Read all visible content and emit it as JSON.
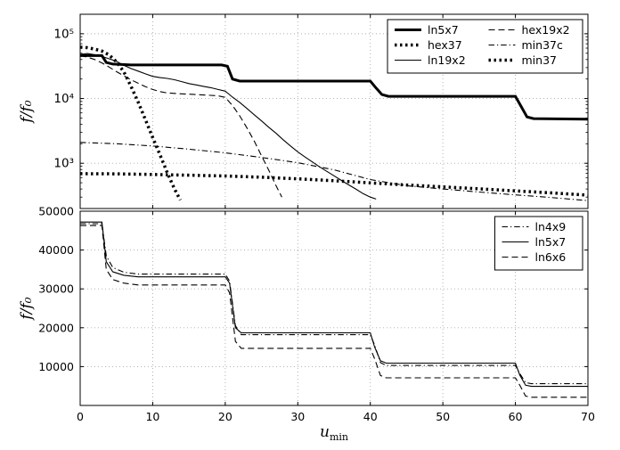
{
  "figure": {
    "background": "#ffffff",
    "axes_color": "#000000",
    "grid_color": "#aaaaaa"
  },
  "chart_data": [
    {
      "type": "line",
      "title": "",
      "ylabel": "f/f₀",
      "yscale": "log",
      "xlim": [
        0,
        70
      ],
      "ylim": [
        200,
        200000
      ],
      "grid": true,
      "xticks": [
        0,
        10,
        20,
        30,
        40,
        50,
        60,
        70
      ],
      "yticks": [
        {
          "v": 1000,
          "label": "10³"
        },
        {
          "v": 10000,
          "label": "10⁴"
        },
        {
          "v": 100000,
          "label": "10⁵"
        }
      ],
      "legend": {
        "position": "upper right",
        "ncol": 2,
        "entries": [
          "ln5x7",
          "hex37",
          "ln19x2",
          "hex19x2",
          "min37c",
          "min37"
        ]
      },
      "series": [
        {
          "name": "ln5x7",
          "style": "solid",
          "width": 3,
          "x": [
            0,
            3,
            3.6,
            4.5,
            7,
            19.5,
            20.3,
            21,
            22,
            40,
            40.8,
            41.6,
            42.5,
            60,
            60.8,
            61.6,
            62.5,
            70
          ],
          "y": [
            46000,
            46000,
            36000,
            34000,
            33000,
            33000,
            31500,
            20000,
            18600,
            18600,
            14500,
            11500,
            10800,
            10800,
            7500,
            5200,
            4900,
            4800
          ]
        },
        {
          "name": "hex37",
          "style": "dotted",
          "width": 3.5,
          "x": [
            0,
            1,
            2,
            3,
            4,
            5,
            6,
            7,
            8,
            9,
            10,
            11,
            12,
            13,
            13.8
          ],
          "y": [
            62000,
            61000,
            58000,
            54000,
            47000,
            37000,
            26000,
            15500,
            8800,
            4700,
            2500,
            1350,
            720,
            400,
            270
          ]
        },
        {
          "name": "ln19x2",
          "style": "solid",
          "width": 1.1,
          "x": [
            0,
            1,
            2,
            3,
            4,
            5,
            6,
            7,
            8,
            9,
            10,
            11,
            12,
            13,
            14,
            15,
            16,
            17,
            18,
            19,
            20,
            21,
            22,
            23,
            24,
            25,
            26,
            27,
            28,
            29,
            30,
            31,
            32,
            33,
            34,
            35,
            36,
            37,
            38,
            39,
            40,
            40.8
          ],
          "y": [
            48000,
            49500,
            47500,
            44500,
            41000,
            37500,
            32500,
            29000,
            26500,
            24000,
            22000,
            21000,
            20400,
            19500,
            18200,
            17000,
            16200,
            15400,
            14700,
            13800,
            13000,
            10500,
            8700,
            7000,
            5600,
            4500,
            3600,
            2900,
            2300,
            1850,
            1500,
            1250,
            1050,
            880,
            750,
            640,
            545,
            465,
            400,
            340,
            300,
            280
          ]
        },
        {
          "name": "hex19x2",
          "style": "dashed",
          "width": 1.1,
          "x": [
            0,
            1,
            2,
            3,
            4,
            5,
            6,
            7,
            8,
            9,
            10,
            11,
            12,
            14,
            16,
            18,
            19,
            20,
            21,
            22,
            23,
            24,
            25,
            26,
            27,
            27.8
          ],
          "y": [
            46000,
            43500,
            40000,
            35500,
            30500,
            26000,
            22500,
            19500,
            17200,
            15200,
            13800,
            12800,
            12200,
            11800,
            11500,
            11200,
            11000,
            10400,
            7800,
            5400,
            3500,
            2200,
            1300,
            780,
            450,
            300
          ]
        },
        {
          "name": "min37c",
          "style": "dashdot",
          "width": 1.1,
          "x": [
            0,
            5,
            10,
            15,
            20,
            25,
            30,
            35,
            40,
            45,
            50,
            55,
            60,
            65,
            70
          ],
          "y": [
            2100,
            2000,
            1850,
            1650,
            1450,
            1230,
            1020,
            790,
            560,
            450,
            400,
            360,
            325,
            295,
            265
          ]
        },
        {
          "name": "min37",
          "style": "dotted",
          "width": 3.5,
          "x": [
            0,
            5,
            10,
            15,
            20,
            25,
            30,
            35,
            40,
            45,
            50,
            55,
            60,
            65,
            70
          ],
          "y": [
            690,
            685,
            672,
            655,
            635,
            608,
            575,
            538,
            498,
            462,
            432,
            403,
            375,
            348,
            322
          ]
        }
      ]
    },
    {
      "type": "line",
      "title": "",
      "ylabel": "f/f₀",
      "xlabel_main": "u",
      "xlabel_sub": "min",
      "yscale": "linear",
      "xlim": [
        0,
        70
      ],
      "ylim": [
        0,
        50000
      ],
      "grid": true,
      "xticks": [
        0,
        10,
        20,
        30,
        40,
        50,
        60,
        70
      ],
      "xticklabels": [
        "0",
        "10",
        "20",
        "30",
        "40",
        "50",
        "60",
        "70"
      ],
      "yticks": [
        {
          "v": 10000,
          "label": "10000"
        },
        {
          "v": 20000,
          "label": "20000"
        },
        {
          "v": 30000,
          "label": "30000"
        },
        {
          "v": 40000,
          "label": "40000"
        },
        {
          "v": 50000,
          "label": "50000"
        }
      ],
      "legend": {
        "position": "upper right",
        "ncol": 1,
        "entries": [
          "ln4x9",
          "ln5x7",
          "ln6x6"
        ]
      },
      "series": [
        {
          "name": "ln4x9",
          "style": "dashdot",
          "width": 1.1,
          "x": [
            0,
            3,
            3.6,
            4.5,
            6,
            8,
            20,
            20.6,
            21.4,
            22.2,
            40,
            40.6,
            41.4,
            42.2,
            60,
            60.6,
            61.4,
            62.2,
            70
          ],
          "y": [
            46800,
            46800,
            38500,
            35500,
            34300,
            33800,
            33800,
            32000,
            20500,
            18200,
            18200,
            15500,
            11000,
            10300,
            10300,
            8200,
            5900,
            5600,
            5600
          ]
        },
        {
          "name": "ln5x7",
          "style": "solid",
          "width": 1.1,
          "x": [
            0,
            3,
            3.6,
            4.5,
            6,
            8,
            20,
            20.6,
            21.4,
            22.2,
            40,
            40.6,
            41.4,
            42.2,
            60,
            60.6,
            61.4,
            62.2,
            70
          ],
          "y": [
            47200,
            47200,
            37000,
            34400,
            33500,
            33100,
            33100,
            31500,
            20000,
            18700,
            18700,
            15000,
            11500,
            10900,
            10900,
            7800,
            5200,
            4900,
            4900
          ]
        },
        {
          "name": "ln6x6",
          "style": "dashed",
          "width": 1.1,
          "x": [
            0,
            3,
            3.6,
            4.5,
            6,
            8,
            20,
            20.6,
            21.4,
            22.2,
            40,
            40.6,
            41.4,
            42.2,
            60,
            60.6,
            61.4,
            62.2,
            70
          ],
          "y": [
            46300,
            46300,
            35000,
            32400,
            31500,
            31000,
            31000,
            29000,
            16500,
            14700,
            14700,
            12000,
            7700,
            7100,
            7100,
            5200,
            2400,
            2100,
            2100
          ]
        }
      ]
    }
  ]
}
